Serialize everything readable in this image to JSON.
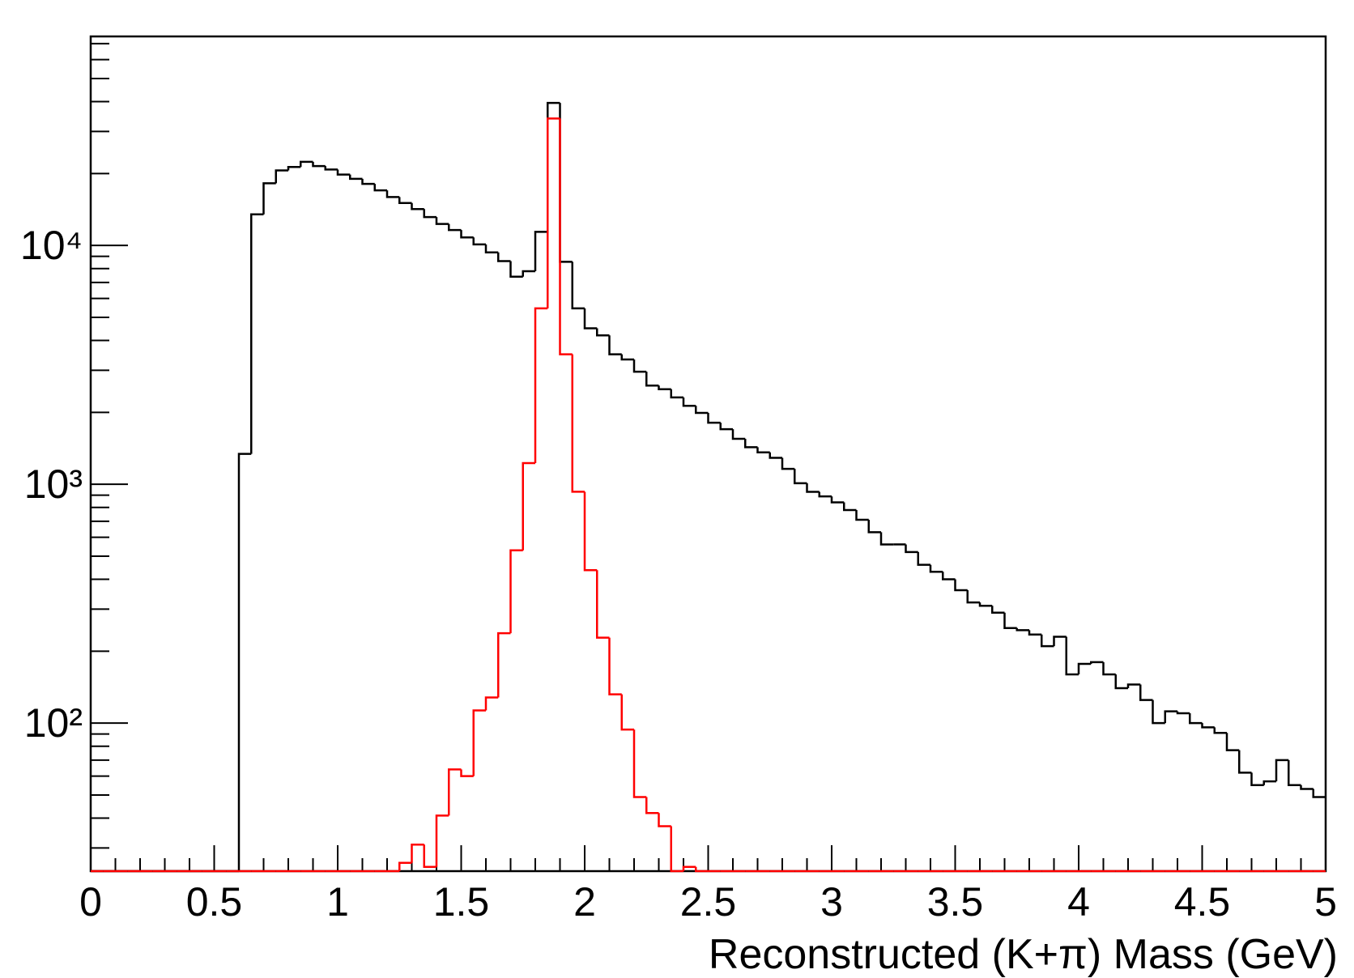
{
  "chart_data": {
    "type": "histogram",
    "x_label": "Reconstructed (K+π) Mass (GeV)",
    "bins": [
      0,
      0.05,
      0.1,
      0.15,
      0.2,
      0.25,
      0.3,
      0.35,
      0.4,
      0.45,
      0.5,
      0.55,
      0.6,
      0.65,
      0.7,
      0.75,
      0.8,
      0.85,
      0.9,
      0.95,
      1,
      1.05,
      1.1,
      1.15,
      1.2,
      1.25,
      1.3,
      1.35,
      1.4,
      1.45,
      1.5,
      1.55,
      1.6,
      1.65,
      1.7,
      1.75,
      1.8,
      1.85,
      1.9,
      1.95,
      2,
      2.05,
      2.1,
      2.15,
      2.2,
      2.25,
      2.3,
      2.35,
      2.4,
      2.45,
      2.5,
      2.55,
      2.6,
      2.65,
      2.7,
      2.75,
      2.8,
      2.85,
      2.9,
      2.95,
      3,
      3.05,
      3.1,
      3.15,
      3.2,
      3.25,
      3.3,
      3.35,
      3.4,
      3.45,
      3.5,
      3.55,
      3.6,
      3.65,
      3.7,
      3.75,
      3.8,
      3.85,
      3.9,
      3.95,
      4,
      4.05,
      4.1,
      4.15,
      4.2,
      4.25,
      4.3,
      4.35,
      4.4,
      4.45,
      4.5,
      4.55,
      4.6,
      4.65,
      4.7,
      4.75,
      4.8,
      4.85,
      4.9,
      4.95,
      5
    ],
    "series": [
      {
        "color": "#000000",
        "values": [
          0,
          0,
          0,
          0,
          0,
          0,
          0,
          0,
          0,
          0,
          0,
          0,
          1340,
          13500,
          18200,
          20600,
          21300,
          22400,
          21500,
          20800,
          19800,
          19000,
          18100,
          17000,
          15950,
          15050,
          14200,
          13150,
          12300,
          11600,
          10800,
          10100,
          9350,
          8600,
          7400,
          7800,
          11400,
          39500,
          8540,
          5450,
          4500,
          4200,
          3500,
          3330,
          2960,
          2590,
          2500,
          2310,
          2130,
          1990,
          1810,
          1700,
          1550,
          1430,
          1360,
          1290,
          1160,
          1010,
          930,
          890,
          840,
          780,
          710,
          630,
          560,
          560,
          520,
          460,
          430,
          400,
          360,
          320,
          310,
          290,
          250,
          245,
          235,
          210,
          230,
          160,
          177,
          180,
          160,
          140,
          145,
          125,
          100,
          112,
          110,
          100,
          96,
          91,
          77,
          62,
          55,
          57,
          70,
          55,
          53,
          49
        ]
      },
      {
        "color": "#ff0000",
        "values": [
          0,
          0,
          0,
          0,
          0,
          0,
          0,
          0,
          0,
          0,
          0,
          0,
          0,
          0,
          0,
          0,
          0,
          0,
          0,
          0,
          0,
          0,
          0,
          0,
          0,
          26,
          31,
          25,
          41,
          64,
          60,
          113,
          128,
          238,
          529,
          1227,
          5450,
          34000,
          3500,
          931,
          437,
          228,
          132,
          94,
          49,
          42,
          37,
          0,
          25,
          0,
          0,
          0,
          0,
          0,
          0,
          0,
          0,
          0,
          0,
          0,
          0,
          0,
          0,
          0,
          0,
          0,
          0,
          0,
          0,
          0,
          0,
          0,
          0,
          0,
          0,
          0,
          0,
          0,
          0,
          0,
          0,
          0,
          0,
          0,
          0,
          0,
          0,
          0,
          0,
          0,
          0,
          0,
          0,
          0,
          0,
          0,
          0,
          0,
          0,
          0
        ]
      }
    ],
    "xlim": [
      0,
      5
    ],
    "xticks": [
      0,
      0.5,
      1,
      1.5,
      2,
      2.5,
      3,
      3.5,
      4,
      4.5,
      5
    ],
    "xminorticks": [
      0.1,
      0.2,
      0.3,
      0.4,
      0.6,
      0.7,
      0.8,
      0.9,
      1.1,
      1.2,
      1.3,
      1.4,
      1.6,
      1.7,
      1.8,
      1.9,
      2.1,
      2.2,
      2.3,
      2.4,
      2.6,
      2.7,
      2.8,
      2.9,
      3.1,
      3.2,
      3.3,
      3.4,
      3.6,
      3.7,
      3.8,
      3.9,
      4.1,
      4.2,
      4.3,
      4.4,
      4.6,
      4.7,
      4.8,
      4.9
    ],
    "ylim": [
      24,
      75000
    ],
    "log_y": true,
    "yticks": [
      {
        "value": 100,
        "label": "10²"
      },
      {
        "value": 1000,
        "label": "10³"
      },
      {
        "value": 10000,
        "label": "10⁴"
      }
    ],
    "yminorticks": [
      30,
      40,
      50,
      60,
      70,
      80,
      90,
      200,
      300,
      400,
      500,
      600,
      700,
      800,
      900,
      2000,
      3000,
      4000,
      5000,
      6000,
      7000,
      8000,
      9000,
      20000,
      30000,
      40000,
      50000,
      60000,
      70000
    ]
  }
}
